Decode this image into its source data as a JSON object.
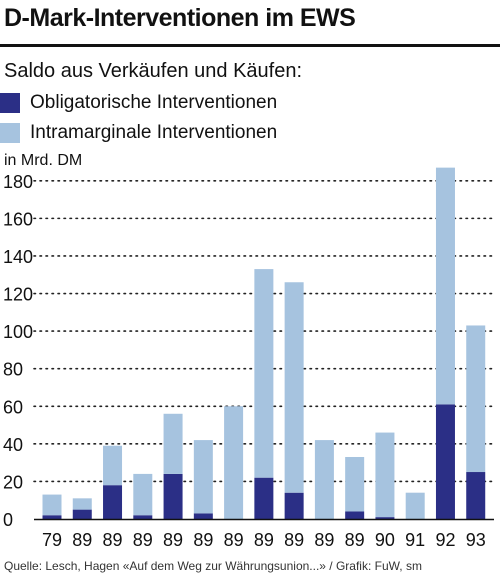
{
  "title": "D-Mark-Interventionen im EWS",
  "subtitle": "Saldo aus Verkäufen und Käufen:",
  "legend": [
    {
      "label": "Obligatorische Interventionen",
      "color": "#2b2f86"
    },
    {
      "label": "Intramarginale Interventionen",
      "color": "#a6c3df"
    }
  ],
  "unit_label": "in Mrd. DM",
  "source": "Quelle: Lesch, Hagen «Auf dem Weg zur Währungsunion...» / Grafik: FuW, sm",
  "chart_data": {
    "type": "bar",
    "stacked": true,
    "categories": [
      "79",
      "89",
      "89",
      "89",
      "89",
      "89",
      "89",
      "89",
      "89",
      "89",
      "89",
      "90",
      "91",
      "92",
      "93"
    ],
    "series": [
      {
        "name": "Obligatorische Interventionen",
        "color": "#2b2f86",
        "values": [
          2,
          5,
          18,
          2,
          24,
          3,
          0,
          22,
          14,
          0,
          4,
          1,
          0,
          61,
          25
        ]
      },
      {
        "name": "Intramarginale Interventionen",
        "color": "#a6c3df",
        "values": [
          11,
          6,
          21,
          22,
          32,
          39,
          60,
          111,
          112,
          42,
          29,
          45,
          14,
          126,
          78
        ]
      }
    ],
    "ylabel": "in Mrd. DM",
    "ylim": [
      0,
      190
    ],
    "yticks": [
      0,
      20,
      40,
      60,
      80,
      100,
      120,
      140,
      160,
      180
    ],
    "grid": "dotted horizontal"
  }
}
